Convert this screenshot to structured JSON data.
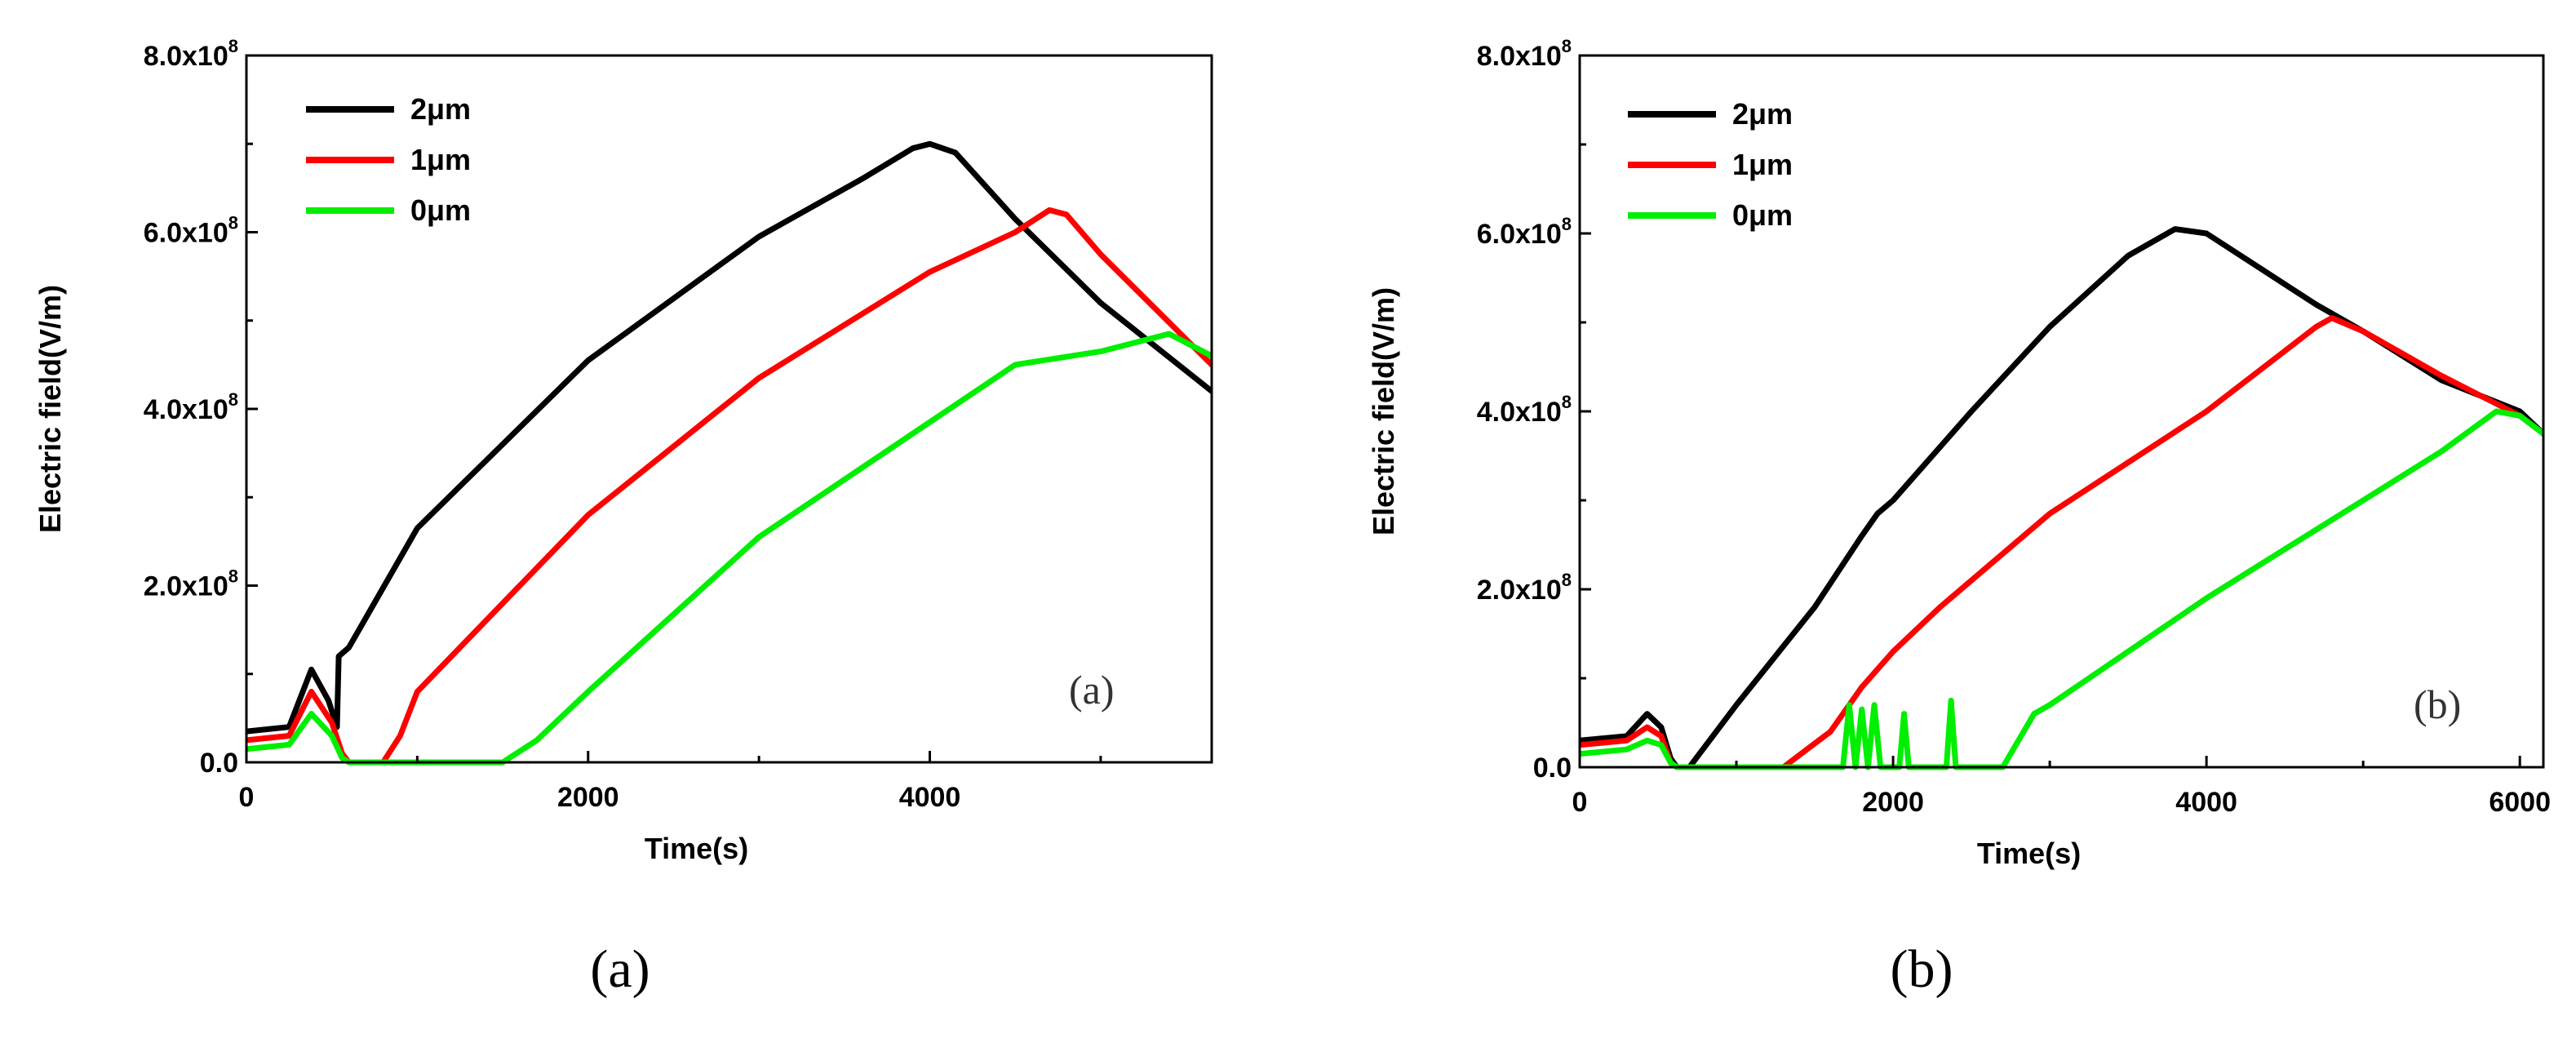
{
  "chart_data": [
    {
      "type": "line",
      "panel": "a",
      "caption": "(a)",
      "inner_label": "(a)",
      "xlabel": "Time(s)",
      "ylabel": "Electric field(V/m)",
      "xlim": [
        0,
        5650
      ],
      "ylim": [
        0,
        800000000
      ],
      "xticks": [
        0,
        2000,
        4000
      ],
      "yticks": [
        {
          "value": 0,
          "label": "0.0"
        },
        {
          "value": 200000000,
          "mant": "2.0x10",
          "exp": "8"
        },
        {
          "value": 400000000,
          "mant": "4.0x10",
          "exp": "8"
        },
        {
          "value": 600000000,
          "mant": "6.0x10",
          "exp": "8"
        },
        {
          "value": 800000000,
          "mant": "8.0x10",
          "exp": "8"
        }
      ],
      "series": [
        {
          "name": "2μm",
          "color": "#000000",
          "x": [
            0,
            250,
            380,
            480,
            530,
            540,
            600,
            1000,
            2000,
            3000,
            3600,
            3900,
            4000,
            4150,
            4500,
            5000,
            5650
          ],
          "y": [
            35000000,
            40000000,
            105000000,
            70000000,
            40000000,
            120000000,
            130000000,
            265000000,
            455000000,
            595000000,
            660000000,
            695000000,
            700000000,
            690000000,
            615000000,
            520000000,
            420000000
          ]
        },
        {
          "name": "1μm",
          "color": "#ff0000",
          "x": [
            0,
            250,
            380,
            500,
            560,
            600,
            800,
            900,
            1000,
            2000,
            3000,
            4000,
            4500,
            4700,
            4800,
            5000,
            5650
          ],
          "y": [
            25000000,
            30000000,
            80000000,
            45000000,
            10000000,
            0,
            0,
            30000000,
            80000000,
            280000000,
            435000000,
            555000000,
            600000000,
            625000000,
            620000000,
            575000000,
            450000000
          ]
        },
        {
          "name": "0μm",
          "color": "#00ee00",
          "x": [
            0,
            250,
            380,
            500,
            560,
            600,
            800,
            1500,
            1700,
            2000,
            3000,
            4000,
            4500,
            5000,
            5400,
            5650
          ],
          "y": [
            15000000,
            20000000,
            55000000,
            30000000,
            5000000,
            0,
            0,
            0,
            25000000,
            80000000,
            255000000,
            385000000,
            450000000,
            465000000,
            485000000,
            460000000
          ]
        }
      ]
    },
    {
      "type": "line",
      "panel": "b",
      "caption": "(b)",
      "inner_label": "(b)",
      "xlabel": "Time(s)",
      "ylabel": "Electric field(V/m)",
      "xlim": [
        0,
        6150
      ],
      "ylim": [
        0,
        800000000
      ],
      "xticks": [
        0,
        2000,
        4000,
        6000
      ],
      "yticks": [
        {
          "value": 0,
          "label": "0.0"
        },
        {
          "value": 200000000,
          "mant": "2.0x10",
          "exp": "8"
        },
        {
          "value": 400000000,
          "mant": "4.0x10",
          "exp": "8"
        },
        {
          "value": 600000000,
          "mant": "6.0x10",
          "exp": "8"
        },
        {
          "value": 800000000,
          "mant": "8.0x10",
          "exp": "8"
        }
      ],
      "series": [
        {
          "name": "2μm",
          "color": "#000000",
          "x": [
            0,
            300,
            430,
            520,
            580,
            620,
            700,
            1000,
            1500,
            1800,
            1900,
            2000,
            2500,
            3000,
            3500,
            3800,
            4000,
            4700,
            5000,
            5500,
            6000,
            6150
          ],
          "y": [
            30000000,
            35000000,
            60000000,
            45000000,
            10000000,
            0,
            0,
            70000000,
            180000000,
            260000000,
            285000000,
            300000000,
            400000000,
            495000000,
            575000000,
            605000000,
            600000000,
            520000000,
            490000000,
            435000000,
            400000000,
            375000000
          ]
        },
        {
          "name": "1μm",
          "color": "#ff0000",
          "x": [
            0,
            300,
            430,
            520,
            580,
            620,
            1300,
            1450,
            1600,
            1800,
            1900,
            2000,
            2300,
            3000,
            4000,
            4700,
            4800,
            5000,
            5500,
            6000,
            6150
          ],
          "y": [
            25000000,
            30000000,
            45000000,
            35000000,
            5000000,
            0,
            0,
            20000000,
            40000000,
            90000000,
            110000000,
            130000000,
            180000000,
            285000000,
            400000000,
            495000000,
            505000000,
            490000000,
            440000000,
            395000000,
            375000000
          ]
        },
        {
          "name": "0μm",
          "color": "#00ee00",
          "x": [
            0,
            300,
            430,
            520,
            580,
            620,
            1680,
            1720,
            1760,
            1800,
            1840,
            1880,
            1920,
            2040,
            2070,
            2100,
            2340,
            2370,
            2400,
            2700,
            2900,
            3000,
            3500,
            4000,
            5000,
            5500,
            5850,
            6000,
            6150
          ],
          "y": [
            15000000,
            20000000,
            30000000,
            25000000,
            5000000,
            0,
            0,
            70000000,
            0,
            65000000,
            0,
            70000000,
            0,
            0,
            60000000,
            0,
            0,
            75000000,
            0,
            0,
            60000000,
            70000000,
            130000000,
            190000000,
            300000000,
            355000000,
            400000000,
            395000000,
            375000000
          ]
        }
      ]
    }
  ]
}
